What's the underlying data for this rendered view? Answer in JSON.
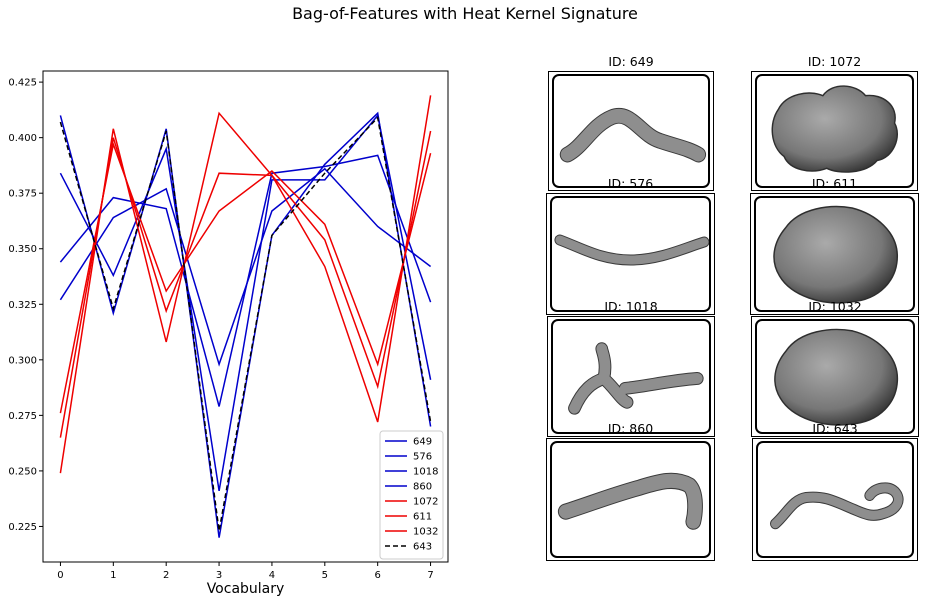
{
  "figure": {
    "suptitle": "Bag-of-Features with Heat Kernel Signature"
  },
  "chart_data": {
    "type": "line",
    "title": "",
    "xlabel": "Vocabulary",
    "ylabel": "",
    "x": [
      0,
      1,
      2,
      3,
      4,
      5,
      6,
      7
    ],
    "xticks": [
      "0",
      "1",
      "2",
      "3",
      "4",
      "5",
      "6",
      "7"
    ],
    "yticks": [
      "0.225",
      "0.250",
      "0.275",
      "0.300",
      "0.325",
      "0.350",
      "0.375",
      "0.400",
      "0.425"
    ],
    "xlim": [
      -0.33,
      7.33
    ],
    "ylim": [
      0.209,
      0.43
    ],
    "grid": false,
    "legend_position": "lower-right",
    "colors": {
      "group_a": "#0000cc",
      "group_b": "#ee0000",
      "query": "#000000"
    },
    "series": [
      {
        "name": "649",
        "color": "#0000cc",
        "style": "solid",
        "values": [
          0.41,
          0.321,
          0.404,
          0.22,
          0.356,
          0.388,
          0.411,
          0.27
        ]
      },
      {
        "name": "576",
        "color": "#0000cc",
        "style": "solid",
        "values": [
          0.384,
          0.338,
          0.395,
          0.241,
          0.381,
          0.381,
          0.41,
          0.291
        ]
      },
      {
        "name": "1018",
        "color": "#0000cc",
        "style": "solid",
        "values": [
          0.344,
          0.373,
          0.368,
          0.279,
          0.384,
          0.387,
          0.392,
          0.326
        ]
      },
      {
        "name": "860",
        "color": "#0000cc",
        "style": "solid",
        "values": [
          0.327,
          0.364,
          0.377,
          0.298,
          0.367,
          0.386,
          0.36,
          0.342
        ]
      },
      {
        "name": "1072",
        "color": "#ee0000",
        "style": "solid",
        "values": [
          0.249,
          0.404,
          0.308,
          0.411,
          0.383,
          0.342,
          0.272,
          0.419
        ]
      },
      {
        "name": "611",
        "color": "#ee0000",
        "style": "solid",
        "values": [
          0.265,
          0.4,
          0.322,
          0.384,
          0.383,
          0.354,
          0.288,
          0.403
        ]
      },
      {
        "name": "1032",
        "color": "#ee0000",
        "style": "solid",
        "values": [
          0.276,
          0.397,
          0.331,
          0.367,
          0.385,
          0.361,
          0.298,
          0.393
        ]
      },
      {
        "name": "643",
        "color": "#000000",
        "style": "dashed",
        "values": [
          0.407,
          0.323,
          0.403,
          0.223,
          0.356,
          0.384,
          0.409,
          0.272
        ]
      }
    ]
  },
  "thumbnails": [
    {
      "title": "ID: 649",
      "shape": "worm-arc"
    },
    {
      "title": "ID: 1072",
      "shape": "blob-lumpy"
    },
    {
      "title": "ID: 576",
      "shape": "worm-flat"
    },
    {
      "title": "ID: 611",
      "shape": "blob-round"
    },
    {
      "title": "ID: 1018",
      "shape": "worm-branch"
    },
    {
      "title": "ID: 1032",
      "shape": "blob-round"
    },
    {
      "title": "ID: 860",
      "shape": "worm-rising"
    },
    {
      "title": "ID: 643",
      "shape": "worm-loop"
    }
  ]
}
